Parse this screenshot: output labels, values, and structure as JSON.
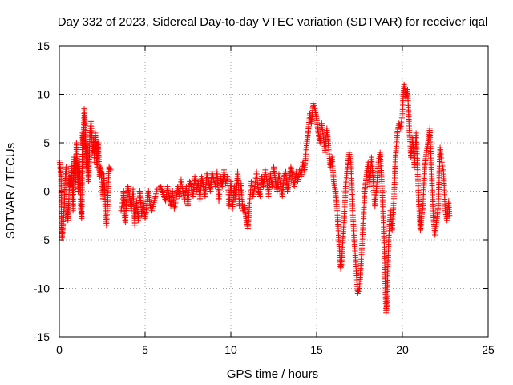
{
  "chart_data": {
    "type": "scatter",
    "title": "Day 332 of 2023, Sidereal Day-to-day VTEC variation (SDTVAR) for receiver iqal",
    "xlabel": "GPS time / hours",
    "ylabel": "SDTVAR / TECUs",
    "xlim": [
      0,
      25
    ],
    "ylim": [
      -15,
      15
    ],
    "xticks": [
      0,
      5,
      10,
      15,
      20,
      25
    ],
    "yticks": [
      -15,
      -10,
      -5,
      0,
      5,
      10,
      15
    ],
    "xtick_labels": [
      "0",
      "5",
      "10",
      "15",
      "20",
      "25"
    ],
    "ytick_labels": [
      "-15",
      "-10",
      "-5",
      "0",
      "5",
      "10",
      "15"
    ],
    "grid": true,
    "marker": "+",
    "color": "#ff0000",
    "series": [
      {
        "name": "SDTVAR",
        "points": [
          [
            0.0,
            3.2
          ],
          [
            0.05,
            2.5
          ],
          [
            0.1,
            1.5
          ],
          [
            0.12,
            -3.5
          ],
          [
            0.15,
            -4.8
          ],
          [
            0.2,
            -4.0
          ],
          [
            0.25,
            -2.5
          ],
          [
            0.3,
            -1.0
          ],
          [
            0.35,
            1.8
          ],
          [
            0.4,
            2.5
          ],
          [
            0.45,
            -2.0
          ],
          [
            0.5,
            -3.0
          ],
          [
            0.55,
            -1.0
          ],
          [
            0.6,
            1.5
          ],
          [
            0.65,
            0.5
          ],
          [
            0.7,
            2.8
          ],
          [
            0.75,
            1.0
          ],
          [
            0.8,
            -2.0
          ],
          [
            0.85,
            3.5
          ],
          [
            0.9,
            2.0
          ],
          [
            0.95,
            1.0
          ],
          [
            1.0,
            5.0
          ],
          [
            1.05,
            2.5
          ],
          [
            1.1,
            0.0
          ],
          [
            1.15,
            3.0
          ],
          [
            1.2,
            1.5
          ],
          [
            1.25,
            -1.5
          ],
          [
            1.3,
            -2.8
          ],
          [
            1.35,
            6.0
          ],
          [
            1.4,
            4.5
          ],
          [
            1.45,
            8.5
          ],
          [
            1.5,
            7.0
          ],
          [
            1.55,
            2.5
          ],
          [
            1.6,
            5.0
          ],
          [
            1.65,
            3.0
          ],
          [
            1.7,
            1.0
          ],
          [
            1.75,
            4.0
          ],
          [
            1.8,
            6.5
          ],
          [
            1.85,
            7.2
          ],
          [
            1.9,
            5.5
          ],
          [
            1.95,
            4.0
          ],
          [
            2.0,
            5.5
          ],
          [
            2.05,
            3.0
          ],
          [
            2.1,
            6.0
          ],
          [
            2.15,
            4.5
          ],
          [
            2.2,
            2.5
          ],
          [
            2.25,
            5.0
          ],
          [
            2.3,
            3.5
          ],
          [
            2.35,
            1.5
          ],
          [
            2.4,
            2.5
          ],
          [
            2.5,
            0.5
          ],
          [
            2.55,
            -1.0
          ],
          [
            2.6,
            1.8
          ],
          [
            2.7,
            -2.5
          ],
          [
            2.75,
            -3.5
          ],
          [
            2.8,
            -2.0
          ],
          [
            2.85,
            0.5
          ],
          [
            2.9,
            2.5
          ],
          [
            3.0,
            2.2
          ],
          [
            3.6,
            -2.0
          ],
          [
            3.7,
            -1.0
          ],
          [
            3.75,
            0.0
          ],
          [
            3.8,
            -2.5
          ],
          [
            3.85,
            -3.2
          ],
          [
            3.9,
            -1.5
          ],
          [
            4.0,
            0.5
          ],
          [
            4.1,
            -0.5
          ],
          [
            4.2,
            -2.0
          ],
          [
            4.3,
            0.2
          ],
          [
            4.4,
            -3.5
          ],
          [
            4.5,
            -1.0
          ],
          [
            4.6,
            -3.0
          ],
          [
            4.7,
            0.0
          ],
          [
            4.8,
            -2.5
          ],
          [
            4.9,
            -1.0
          ],
          [
            5.0,
            -2.8
          ],
          [
            5.1,
            -1.5
          ],
          [
            5.2,
            0.0
          ],
          [
            5.3,
            -1.5
          ],
          [
            5.4,
            -2.0
          ],
          [
            5.6,
            -0.5
          ],
          [
            5.7,
            0.2
          ],
          [
            5.9,
            0.5
          ],
          [
            6.0,
            0.0
          ],
          [
            6.1,
            -0.5
          ],
          [
            6.2,
            -1.0
          ],
          [
            6.3,
            0.5
          ],
          [
            6.4,
            -0.5
          ],
          [
            6.5,
            -1.5
          ],
          [
            6.6,
            0.0
          ],
          [
            6.7,
            -1.8
          ],
          [
            6.8,
            -1.0
          ],
          [
            6.9,
            0.5
          ],
          [
            7.0,
            -0.5
          ],
          [
            7.1,
            1.2
          ],
          [
            7.2,
            0.0
          ],
          [
            7.3,
            -1.0
          ],
          [
            7.4,
            0.5
          ],
          [
            7.5,
            -1.5
          ],
          [
            7.6,
            1.0
          ],
          [
            7.7,
            0.5
          ],
          [
            7.8,
            -0.5
          ],
          [
            7.9,
            1.5
          ],
          [
            8.0,
            0.0
          ],
          [
            8.1,
            1.0
          ],
          [
            8.2,
            -1.0
          ],
          [
            8.3,
            1.5
          ],
          [
            8.4,
            0.5
          ],
          [
            8.5,
            -0.5
          ],
          [
            8.6,
            1.8
          ],
          [
            8.7,
            1.0
          ],
          [
            8.8,
            0.0
          ],
          [
            8.9,
            2.0
          ],
          [
            9.0,
            1.2
          ],
          [
            9.1,
            0.5
          ],
          [
            9.2,
            2.0
          ],
          [
            9.3,
            -1.0
          ],
          [
            9.4,
            1.5
          ],
          [
            9.5,
            0.5
          ],
          [
            9.6,
            2.2
          ],
          [
            9.7,
            0.8
          ],
          [
            9.8,
            1.5
          ],
          [
            9.9,
            -1.5
          ],
          [
            10.0,
            1.0
          ],
          [
            10.1,
            -1.8
          ],
          [
            10.2,
            0.5
          ],
          [
            10.3,
            -1.0
          ],
          [
            10.4,
            2.0
          ],
          [
            10.5,
            -1.5
          ],
          [
            10.6,
            0.8
          ],
          [
            10.7,
            -2.0
          ],
          [
            10.8,
            -1.5
          ],
          [
            10.9,
            -3.0
          ],
          [
            11.0,
            -3.8
          ],
          [
            11.05,
            -2.5
          ],
          [
            11.1,
            -1.0
          ],
          [
            11.2,
            1.0
          ],
          [
            11.3,
            -0.5
          ],
          [
            11.4,
            0.5
          ],
          [
            11.5,
            2.0
          ],
          [
            11.6,
            0.0
          ],
          [
            11.7,
            -0.5
          ],
          [
            11.8,
            1.5
          ],
          [
            11.9,
            0.5
          ],
          [
            12.0,
            2.2
          ],
          [
            12.1,
            1.0
          ],
          [
            12.2,
            -0.5
          ],
          [
            12.3,
            1.8
          ],
          [
            12.4,
            0.5
          ],
          [
            12.5,
            2.5
          ],
          [
            12.6,
            1.0
          ],
          [
            12.7,
            0.0
          ],
          [
            12.8,
            1.8
          ],
          [
            12.9,
            0.5
          ],
          [
            13.0,
            -0.5
          ],
          [
            13.1,
            1.5
          ],
          [
            13.2,
            2.0
          ],
          [
            13.3,
            0.0
          ],
          [
            13.4,
            1.0
          ],
          [
            13.5,
            2.5
          ],
          [
            13.6,
            1.5
          ],
          [
            13.7,
            0.5
          ],
          [
            13.8,
            2.0
          ],
          [
            13.9,
            1.0
          ],
          [
            14.0,
            2.2
          ],
          [
            14.1,
            1.5
          ],
          [
            14.2,
            3.0
          ],
          [
            14.3,
            2.0
          ],
          [
            14.4,
            4.5
          ],
          [
            14.5,
            6.0
          ],
          [
            14.6,
            8.0
          ],
          [
            14.7,
            7.0
          ],
          [
            14.8,
            9.0
          ],
          [
            14.9,
            8.5
          ],
          [
            15.0,
            7.5
          ],
          [
            15.1,
            6.0
          ],
          [
            15.2,
            5.0
          ],
          [
            15.3,
            7.0
          ],
          [
            15.4,
            5.5
          ],
          [
            15.5,
            4.0
          ],
          [
            15.6,
            6.5
          ],
          [
            15.7,
            4.5
          ],
          [
            15.8,
            2.5
          ],
          [
            15.9,
            3.5
          ],
          [
            16.0,
            1.0
          ],
          [
            16.1,
            0.0
          ],
          [
            16.2,
            -2.0
          ],
          [
            16.3,
            -5.0
          ],
          [
            16.4,
            -8.0
          ],
          [
            16.45,
            -7.5
          ],
          [
            16.5,
            -6.0
          ],
          [
            16.6,
            -3.0
          ],
          [
            16.7,
            0.5
          ],
          [
            16.8,
            2.5
          ],
          [
            16.9,
            4.0
          ],
          [
            17.0,
            3.0
          ],
          [
            17.1,
            -2.0
          ],
          [
            17.2,
            -5.0
          ],
          [
            17.3,
            -8.0
          ],
          [
            17.4,
            -10.5
          ],
          [
            17.5,
            -10.0
          ],
          [
            17.6,
            -7.0
          ],
          [
            17.7,
            -4.0
          ],
          [
            17.8,
            0.0
          ],
          [
            17.9,
            1.5
          ],
          [
            18.0,
            3.0
          ],
          [
            18.1,
            0.5
          ],
          [
            18.2,
            3.5
          ],
          [
            18.3,
            1.0
          ],
          [
            18.4,
            -1.5
          ],
          [
            18.5,
            0.5
          ],
          [
            18.6,
            3.0
          ],
          [
            18.7,
            4.0
          ],
          [
            18.8,
            1.0
          ],
          [
            18.9,
            -3.0
          ],
          [
            18.95,
            -6.0
          ],
          [
            19.0,
            -9.5
          ],
          [
            19.05,
            -12.5
          ],
          [
            19.1,
            -11.5
          ],
          [
            19.15,
            -8.0
          ],
          [
            19.2,
            -5.0
          ],
          [
            19.3,
            -2.0
          ],
          [
            19.4,
            -4.0
          ],
          [
            19.5,
            -1.0
          ],
          [
            19.6,
            3.5
          ],
          [
            19.7,
            6.0
          ],
          [
            19.8,
            7.0
          ],
          [
            19.9,
            6.5
          ],
          [
            20.0,
            8.0
          ],
          [
            20.05,
            10.0
          ],
          [
            20.1,
            11.0
          ],
          [
            20.2,
            9.5
          ],
          [
            20.3,
            10.5
          ],
          [
            20.4,
            6.5
          ],
          [
            20.5,
            3.5
          ],
          [
            20.6,
            5.5
          ],
          [
            20.7,
            2.5
          ],
          [
            20.8,
            6.0
          ],
          [
            20.9,
            1.5
          ],
          [
            21.0,
            -2.5
          ],
          [
            21.05,
            -4.0
          ],
          [
            21.1,
            -3.0
          ],
          [
            21.2,
            -1.5
          ],
          [
            21.3,
            2.5
          ],
          [
            21.4,
            4.0
          ],
          [
            21.5,
            5.0
          ],
          [
            21.6,
            6.5
          ],
          [
            21.7,
            2.0
          ],
          [
            21.8,
            -2.5
          ],
          [
            21.9,
            -4.5
          ],
          [
            22.0,
            -3.0
          ],
          [
            22.1,
            -1.5
          ],
          [
            22.2,
            4.5
          ],
          [
            22.3,
            3.0
          ],
          [
            22.4,
            2.0
          ],
          [
            22.5,
            -2.0
          ],
          [
            22.6,
            -3.0
          ],
          [
            22.7,
            -1.0
          ],
          [
            22.75,
            -2.5
          ]
        ]
      }
    ]
  }
}
